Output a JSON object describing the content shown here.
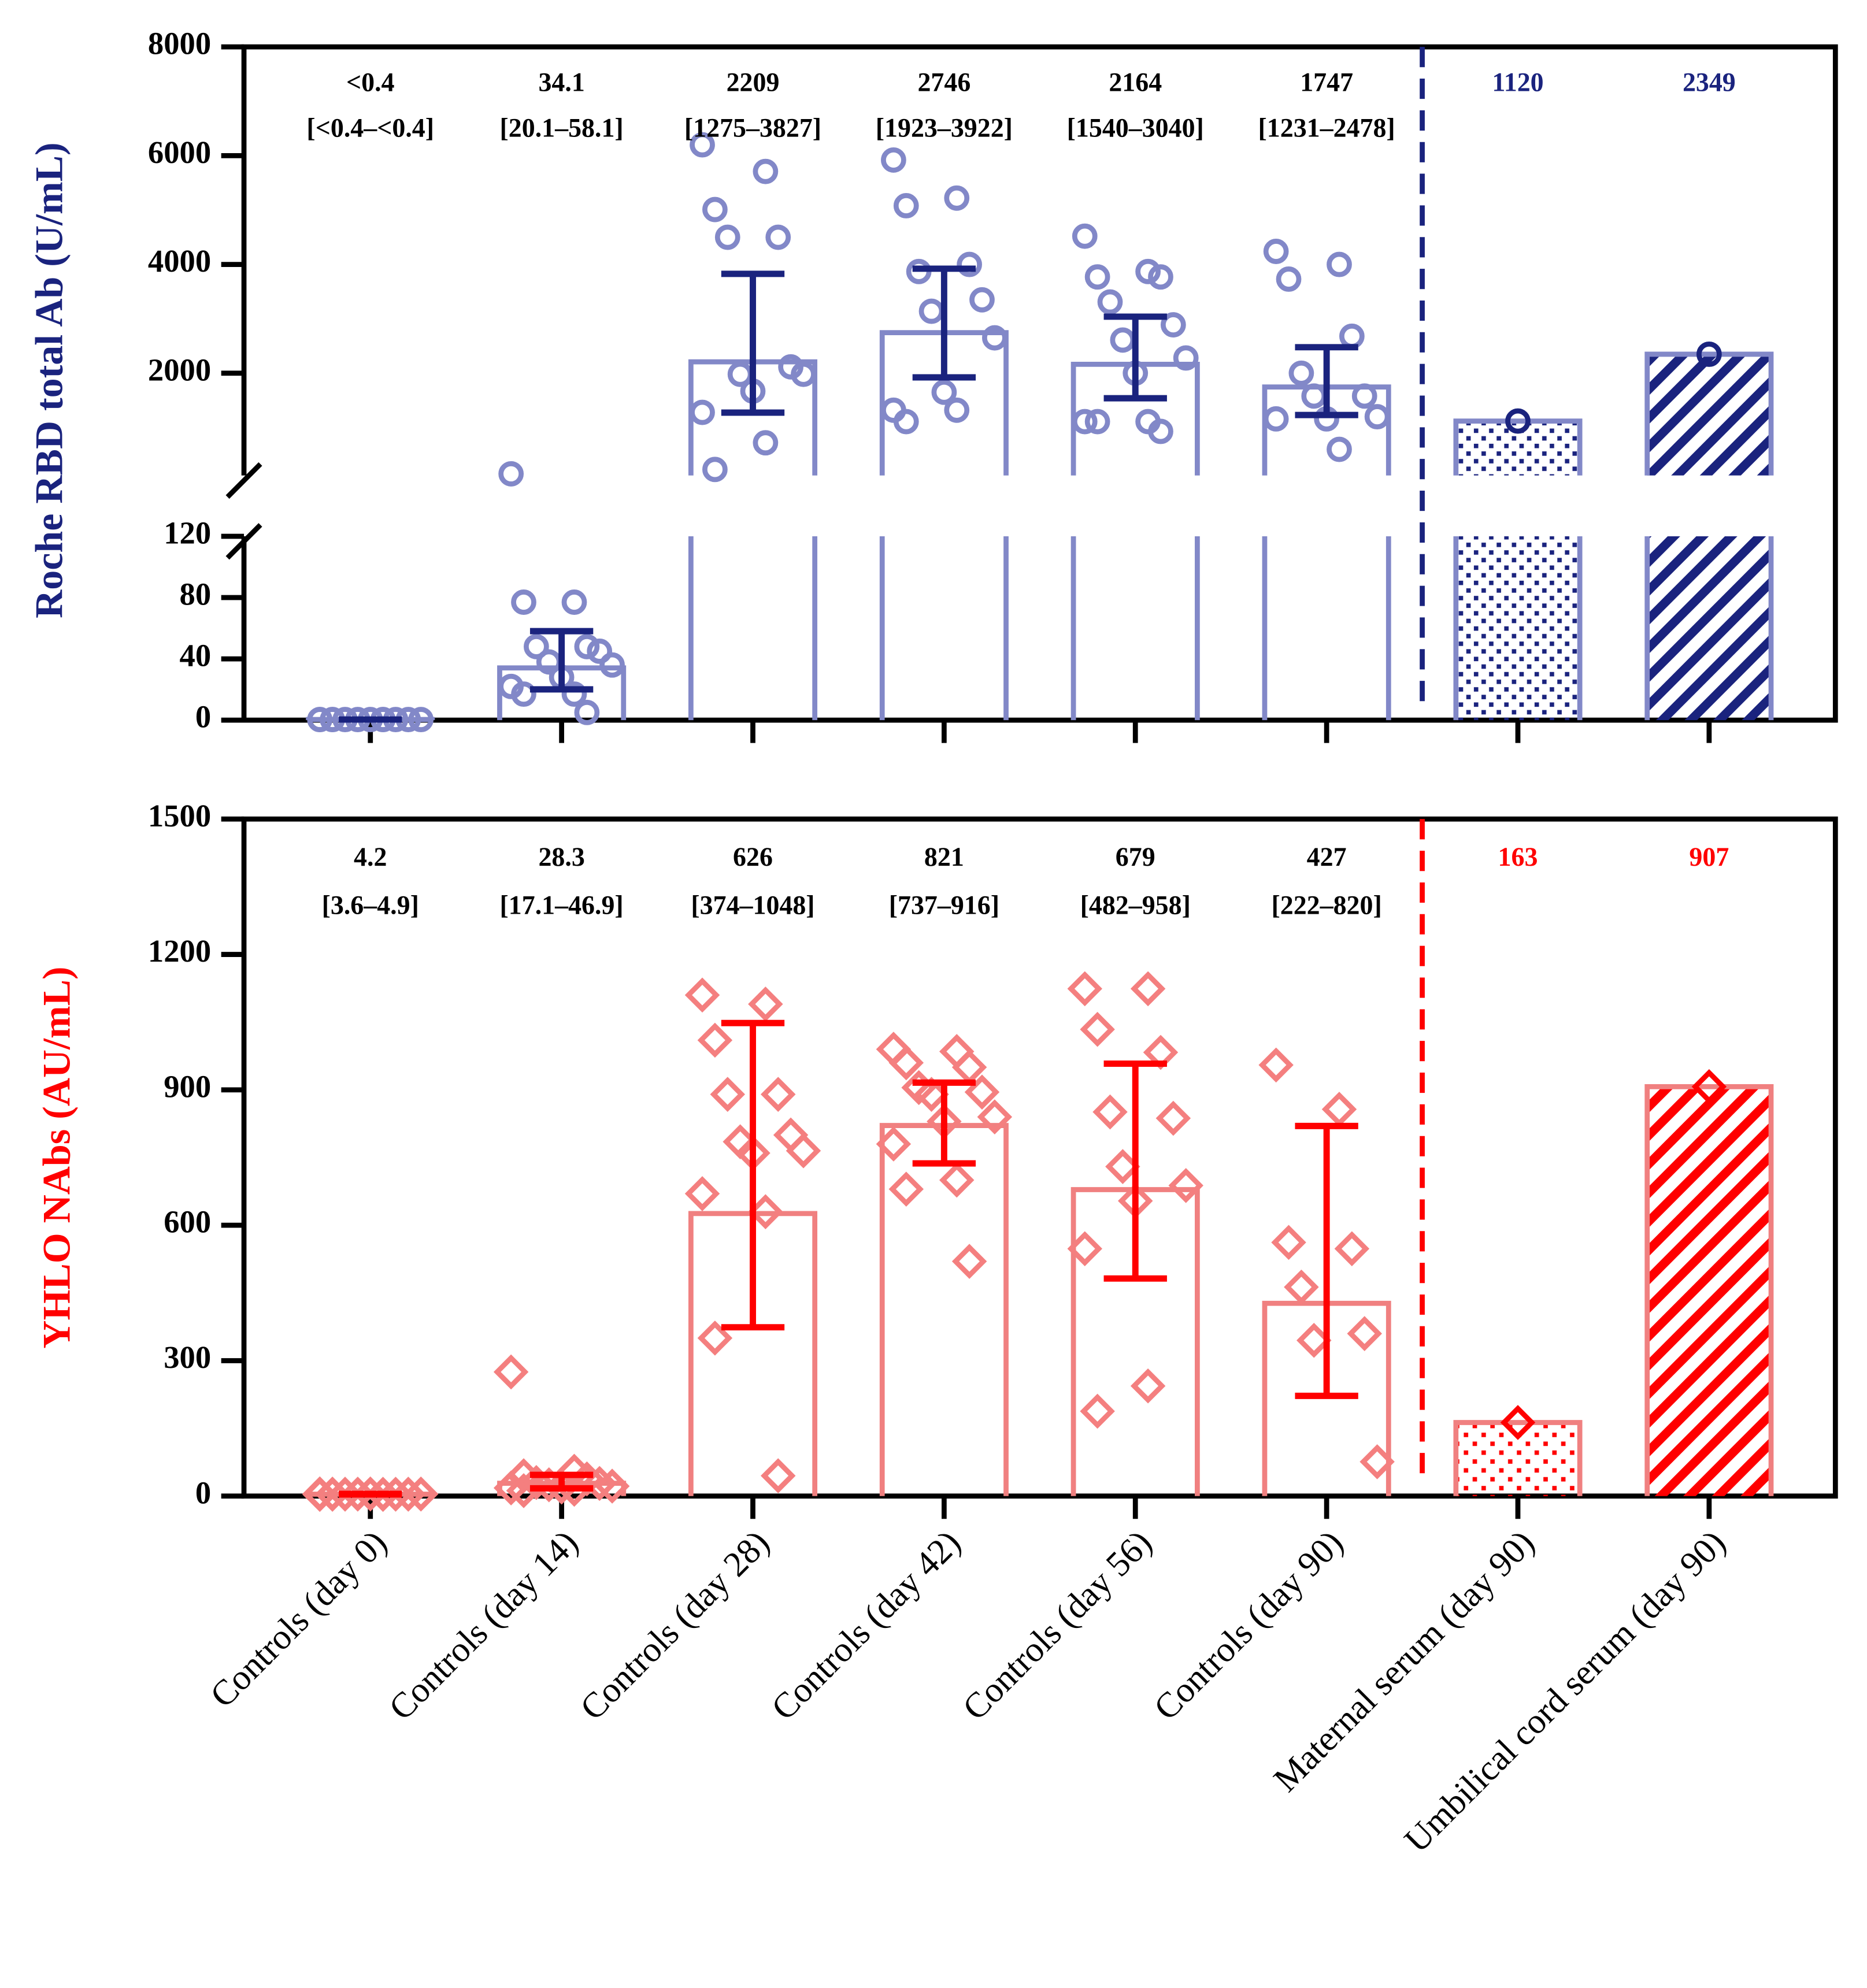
{
  "chart_data": [
    {
      "type": "bar_scatter",
      "ylabel": "Roche RBD total Ab (U/mL)",
      "values": [
        0.4,
        34.1,
        2209,
        2746,
        2164,
        1747,
        1120,
        2349
      ],
      "value_labels": [
        "<0.4",
        "34.1",
        "2209",
        "2746",
        "2164",
        "1747",
        "1120",
        "2349"
      ],
      "error_low": [
        0.4,
        20.1,
        1275,
        1923,
        1540,
        1231,
        null,
        null
      ],
      "error_high": [
        0.4,
        58.1,
        3827,
        3922,
        3040,
        2478,
        null,
        null
      ],
      "interval_labels": [
        "[<0.4–<0.4]",
        "[20.1–58.1]",
        "[1275–3827]",
        "[1923–3922]",
        "[1540–3040]",
        "[1231–2478]",
        null,
        null
      ],
      "points": [
        [
          0.4,
          0.4,
          0.4,
          0.4,
          0.4,
          0.4,
          0.4,
          0.4,
          0.4,
          0.4,
          0.4,
          0.4
        ],
        [
          150,
          77,
          77,
          48,
          48,
          45,
          38,
          36,
          28,
          22,
          17,
          17,
          5
        ],
        [
          6200,
          5710,
          5010,
          4500,
          4500,
          2117,
          1980,
          1980,
          1670,
          1280,
          720,
          230
        ],
        [
          5920,
          5220,
          5080,
          4000,
          3870,
          3350,
          3140,
          2650,
          1650,
          1320,
          1320,
          1110
        ],
        [
          4520,
          3870,
          3770,
          3770,
          3310,
          2890,
          2610,
          2280,
          2000,
          1110,
          1110,
          1110,
          930
        ],
        [
          4240,
          4000,
          3730,
          2680,
          2000,
          1580,
          1580,
          1200,
          1160,
          1160,
          600
        ],
        [
          1120
        ],
        [
          2349
        ]
      ],
      "patterns": [
        null,
        null,
        null,
        null,
        null,
        null,
        "dots",
        "hatch"
      ],
      "bar_color": "#8288c8",
      "point_color": "#8288c8",
      "error_color": "#1a237e",
      "label_colors": [
        "#000000",
        "#000000",
        "#000000",
        "#000000",
        "#000000",
        "#000000",
        "#1a237e",
        "#1a237e"
      ],
      "axis_break": true,
      "y_segments": [
        {
          "ylim": [
            0,
            120
          ],
          "yticks": [
            0,
            40,
            80,
            120
          ]
        },
        {
          "ylim": [
            120,
            8000
          ],
          "yticks": [
            2000,
            4000,
            6000,
            8000
          ]
        }
      ]
    },
    {
      "type": "bar_scatter",
      "ylabel": "YHLO NAbs (AU/mL)",
      "categories": [
        "Controls (day 0)",
        "Controls (day 14)",
        "Controls (day 28)",
        "Controls (day 42)",
        "Controls (day 56)",
        "Controls (day 90)",
        "Maternal serum (day 90)",
        "Umbilical cord serum (day 90)"
      ],
      "values": [
        4.2,
        28.3,
        626,
        821,
        679,
        427,
        163,
        907
      ],
      "error_low": [
        3.6,
        17.1,
        374,
        737,
        482,
        222,
        null,
        null
      ],
      "error_high": [
        4.9,
        46.9,
        1048,
        916,
        958,
        820,
        null,
        null
      ],
      "interval_labels": [
        "[3.6–4.9]",
        "[17.1–46.9]",
        "[374–1048]",
        "[737–916]",
        "[482–958]",
        "[222–820]",
        null,
        null
      ],
      "points": [
        [
          3.6,
          3.8,
          4.0,
          4.1,
          4.2,
          4.2,
          4.3,
          4.5,
          4.7,
          4.9,
          3.9,
          4.4
        ],
        [
          275,
          55,
          45,
          38,
          30,
          28,
          25,
          22,
          20,
          18,
          15,
          12
        ],
        [
          1110,
          1090,
          1010,
          890,
          890,
          800,
          785,
          765,
          760,
          670,
          630,
          350,
          45
        ],
        [
          990,
          985,
          960,
          950,
          905,
          895,
          890,
          840,
          830,
          780,
          700,
          680,
          520
        ],
        [
          1124,
          1124,
          1034,
          983,
          851,
          837,
          730,
          688,
          654,
          548,
          244,
          188
        ],
        [
          955,
          857,
          562,
          548,
          463,
          360,
          345,
          76
        ],
        [
          163
        ],
        [
          907
        ]
      ],
      "patterns": [
        null,
        null,
        null,
        null,
        null,
        null,
        "dots",
        "hatch"
      ],
      "bar_color": "#f08080",
      "point_color": "#f47f7f",
      "error_color": "#ff0000",
      "label_colors": [
        "#000000",
        "#000000",
        "#000000",
        "#000000",
        "#000000",
        "#000000",
        "#ff0000",
        "#ff0000"
      ],
      "ylim": [
        0,
        1500
      ],
      "yticks": [
        0,
        300,
        600,
        900,
        1200,
        1500
      ]
    }
  ]
}
